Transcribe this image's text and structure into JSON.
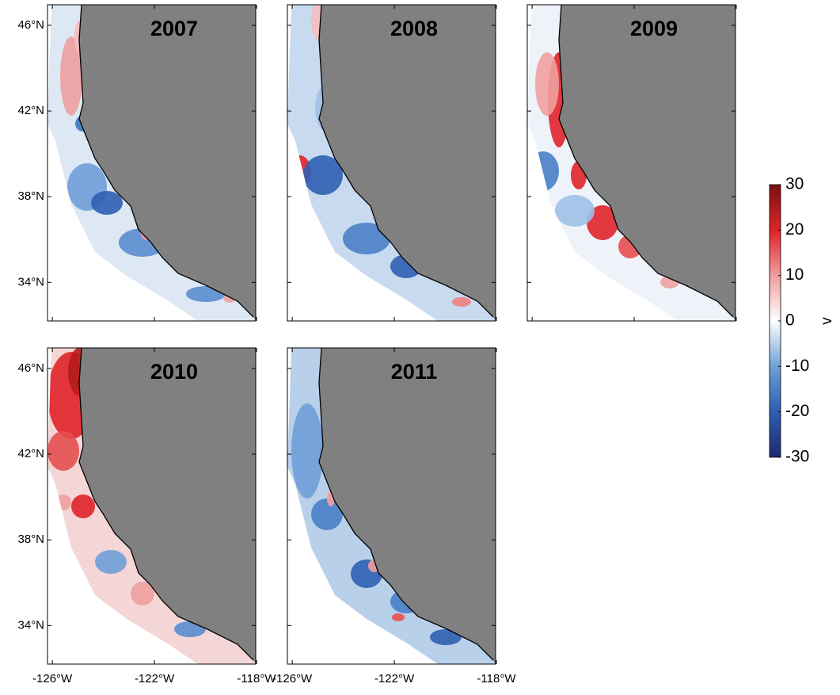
{
  "panels": [
    {
      "title": "2007"
    },
    {
      "title": "2008"
    },
    {
      "title": "2009"
    },
    {
      "title": "2010"
    },
    {
      "title": "2011"
    }
  ],
  "lat_lim": [
    32.2,
    46.96
  ],
  "lon_lim": [
    -126.19,
    -118.03
  ],
  "lat_ticks": [
    {
      "value": 46,
      "label": "46°N"
    },
    {
      "value": 42,
      "label": "42°N"
    },
    {
      "value": 38,
      "label": "38°N"
    },
    {
      "value": 34,
      "label": "34°N"
    }
  ],
  "lon_ticks": [
    {
      "value": -126,
      "label": "-126°W"
    },
    {
      "value": -122,
      "label": "-122°W"
    },
    {
      "value": -118,
      "label": "-118°W"
    }
  ],
  "colorbar": {
    "label": "v",
    "lim": [
      -30,
      30
    ],
    "ticks": [
      30,
      20,
      10,
      0,
      -10,
      -20,
      -30
    ]
  }
}
